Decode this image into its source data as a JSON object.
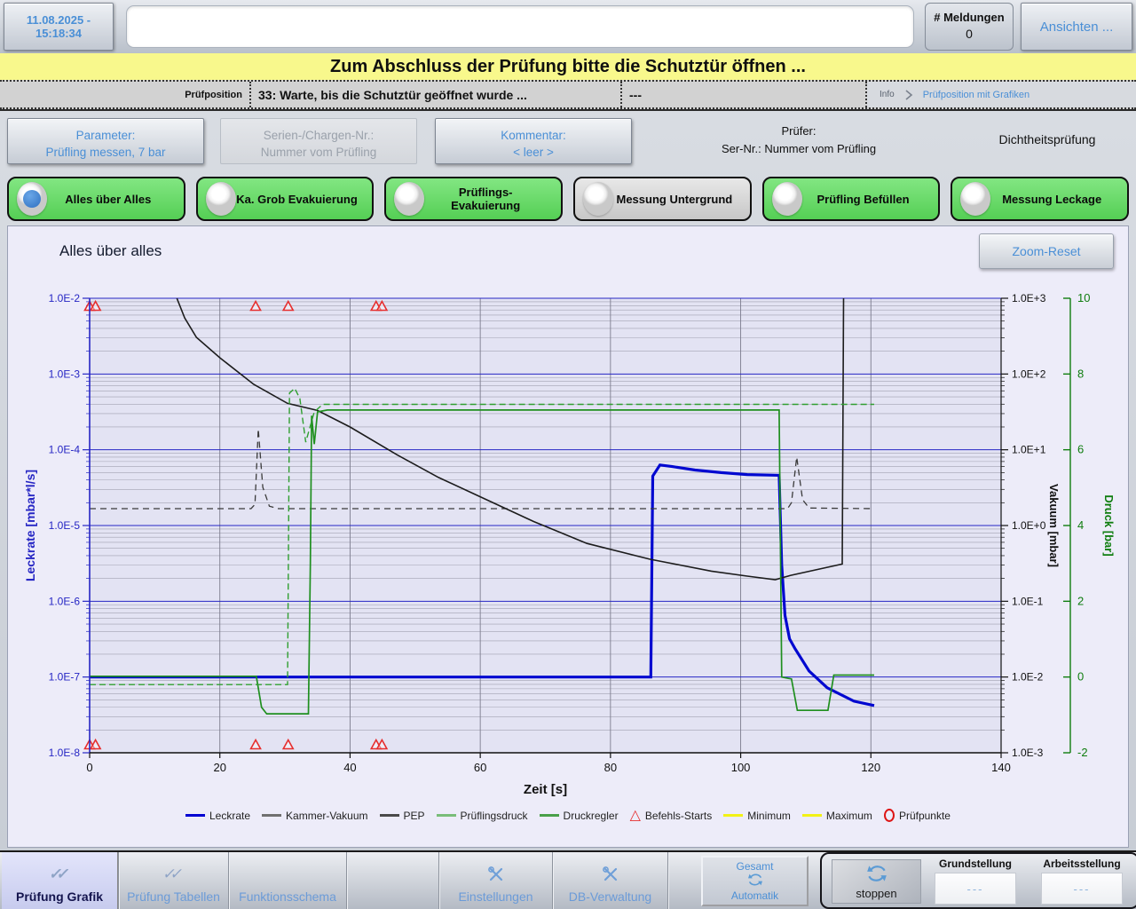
{
  "header": {
    "datetime": "11.08.2025 - 15:18:34",
    "message_text": "",
    "meldungen_label": "# Meldungen",
    "meldungen_count": "0",
    "ansichten_label": "Ansichten ..."
  },
  "banner": {
    "text": "Zum Abschluss der Prüfung bitte die Schutztür öffnen ..."
  },
  "statusbar": {
    "pruefposition_label": "Prüfposition",
    "status_text": "33: Warte, bis die Schutztür geöffnet wurde ...",
    "extra_text": "---",
    "info_label": "Info",
    "view_label": "Prüfposition mit Grafiken"
  },
  "info_row": {
    "parameter_title": "Parameter:",
    "parameter_value": "Prüfling messen, 7 bar",
    "serien_title": "Serien-/Chargen-Nr.:",
    "serien_value": "Nummer vom Prüfling",
    "kommentar_title": "Kommentar:",
    "kommentar_value": "< leer >",
    "pruefer_title": "Prüfer:",
    "pruefer_value": "Ser-Nr.: Nummer vom Prüfling",
    "mode_label": "Dichtheitsprüfung"
  },
  "process_steps": [
    {
      "label": "Alles über Alles",
      "color": "green",
      "selected": true
    },
    {
      "label": "Ka. Grob Evakuierung",
      "color": "green",
      "selected": false
    },
    {
      "label": "Prüflings-Evakuierung",
      "color": "green",
      "selected": false
    },
    {
      "label": "Messung Untergrund",
      "color": "gray",
      "selected": false
    },
    {
      "label": "Prüfling Befüllen",
      "color": "green",
      "selected": false
    },
    {
      "label": "Messung Leckage",
      "color": "green",
      "selected": false
    }
  ],
  "chart": {
    "title": "Alles über alles",
    "zoom_reset_label": "Zoom-Reset"
  },
  "chart_data": {
    "type": "line",
    "title": "Alles über alles",
    "x_axis": {
      "label": "Zeit [s]",
      "range": [
        0,
        140
      ],
      "ticks": [
        0,
        20,
        40,
        60,
        80,
        100,
        120,
        140
      ]
    },
    "axes": [
      {
        "id": "leckrate",
        "label": "Leckrate [mbar*l/s]",
        "side": "left",
        "scale": "log",
        "range": [
          1e-08,
          0.01
        ],
        "color": "#2626c4",
        "tick_values": [
          0.01,
          0.001,
          0.0001,
          1e-05,
          1e-06,
          1e-07,
          1e-08
        ],
        "tick_labels": [
          "1.0E-2",
          "1.0E-3",
          "1.0E-4",
          "1.0E-5",
          "1.0E-6",
          "1.0E-7",
          "1.0E-8"
        ]
      },
      {
        "id": "vakuum",
        "label": "Vakuum [mbar]",
        "side": "right",
        "scale": "log",
        "range": [
          0.001,
          1000.0
        ],
        "color": "#111111",
        "tick_values": [
          1000.0,
          100.0,
          10.0,
          1.0,
          0.1,
          0.01,
          0.001
        ],
        "tick_labels": [
          "1.0E+3",
          "1.0E+2",
          "1.0E+1",
          "1.0E+0",
          "1.0E-1",
          "1.0E-2",
          "1.0E-3"
        ]
      },
      {
        "id": "druck",
        "label": "Druck [bar]",
        "side": "right2",
        "scale": "linear",
        "range": [
          -2,
          10
        ],
        "color": "#0f7d0f",
        "tick_values": [
          10,
          8,
          6,
          4,
          2,
          0,
          -2
        ],
        "tick_labels": [
          "10",
          "8",
          "6",
          "4",
          "2",
          "0",
          "-2"
        ]
      }
    ],
    "series": [
      {
        "name": "Leckrate",
        "axis": "leckrate",
        "color": "#0008d0",
        "width": 3.2,
        "dash": null,
        "points": [
          [
            0,
            1e-07
          ],
          [
            86.2,
            1e-07
          ],
          [
            86.5,
            4.5e-05
          ],
          [
            87.6,
            6.3e-05
          ],
          [
            89.5,
            6e-05
          ],
          [
            93,
            5.4e-05
          ],
          [
            97,
            5e-05
          ],
          [
            101,
            4.7e-05
          ],
          [
            105.9,
            4.6e-05
          ],
          [
            106.3,
            3e-06
          ],
          [
            106.8,
            6.5e-07
          ],
          [
            107.5,
            3.2e-07
          ],
          [
            108.3,
            2.4e-07
          ],
          [
            110.5,
            1.2e-07
          ],
          [
            113.3,
            7.2e-08
          ],
          [
            117.4,
            4.8e-08
          ],
          [
            120.5,
            4.2e-08
          ]
        ]
      },
      {
        "name": "Kammer-Vakuum",
        "axis": "vakuum",
        "color": "#3a3a3a",
        "width": 1.3,
        "dash": "7 5",
        "points": [
          [
            0,
            1.67
          ],
          [
            24.8,
            1.67
          ],
          [
            25.4,
            1.9
          ],
          [
            25.9,
            18.9
          ],
          [
            26.6,
            3.2
          ],
          [
            27.6,
            1.8
          ],
          [
            29,
            1.67
          ],
          [
            107.2,
            1.67
          ],
          [
            107.8,
            2.0
          ],
          [
            108.6,
            8.0
          ],
          [
            109.5,
            2.2
          ],
          [
            110.5,
            1.7
          ],
          [
            120.5,
            1.67
          ]
        ]
      },
      {
        "name": "PEP",
        "axis": "vakuum",
        "color": "#1c1c1c",
        "width": 1.6,
        "dash": null,
        "points": [
          [
            13.4,
            1000
          ],
          [
            14.6,
            550
          ],
          [
            16.4,
            305
          ],
          [
            20,
            164
          ],
          [
            25.2,
            73
          ],
          [
            30.4,
            41
          ],
          [
            35,
            33
          ],
          [
            40,
            20
          ],
          [
            47.3,
            8.5
          ],
          [
            53.6,
            4.3
          ],
          [
            60,
            2.4
          ],
          [
            68.2,
            1.13
          ],
          [
            76.4,
            0.58
          ],
          [
            86,
            0.36
          ],
          [
            95.5,
            0.25
          ],
          [
            101,
            0.215
          ],
          [
            105.3,
            0.193
          ],
          [
            107.7,
            0.22
          ],
          [
            115.6,
            0.31
          ],
          [
            115.8,
            1000
          ]
        ]
      },
      {
        "name": "Prüflingsdruck",
        "axis": "druck",
        "color": "#1f8f1f",
        "width": 1.7,
        "dash": null,
        "points": [
          [
            0,
            0.02
          ],
          [
            25.6,
            0.02
          ],
          [
            26.4,
            -0.8
          ],
          [
            27.2,
            -0.97
          ],
          [
            33.6,
            -0.97
          ],
          [
            33.9,
            3.0
          ],
          [
            34.1,
            6.9
          ],
          [
            34.5,
            6.15
          ],
          [
            35,
            7.0
          ],
          [
            36.5,
            7.05
          ],
          [
            105.9,
            7.05
          ],
          [
            106.3,
            0.0
          ],
          [
            107.8,
            -0.05
          ],
          [
            108.7,
            -0.88
          ],
          [
            113.4,
            -0.88
          ],
          [
            114.3,
            0.05
          ],
          [
            120.5,
            0.05
          ]
        ]
      },
      {
        "name": "Druckregler",
        "axis": "druck",
        "color": "#2f9f2f",
        "width": 1.4,
        "dash": "7 4",
        "points": [
          [
            0,
            -0.2
          ],
          [
            30.4,
            -0.2
          ],
          [
            30.7,
            7.5
          ],
          [
            31.5,
            7.62
          ],
          [
            32.3,
            7.35
          ],
          [
            33.2,
            6.2
          ],
          [
            34.5,
            7.0
          ],
          [
            35.8,
            7.2
          ],
          [
            120.5,
            7.2
          ]
        ]
      }
    ],
    "markers": {
      "name": "Befehls-Starts",
      "times": [
        0,
        0.9,
        25.5,
        30.5,
        44,
        44.9
      ],
      "color": "#e62e2e"
    },
    "legend": [
      {
        "label": "Leckrate",
        "swatch": "line",
        "color": "#0000d2"
      },
      {
        "label": "Kammer-Vakuum",
        "swatch": "line",
        "color": "#707070"
      },
      {
        "label": "PEP",
        "swatch": "line",
        "color": "#4a4a4a"
      },
      {
        "label": "Prüflingsdruck",
        "swatch": "line",
        "color": "#79bd79"
      },
      {
        "label": "Druckregler",
        "swatch": "line",
        "color": "#49a049"
      },
      {
        "label": "Befehls-Starts",
        "swatch": "triangle",
        "color": "#e62e2e"
      },
      {
        "label": "Minimum",
        "swatch": "line",
        "color": "#f2f215"
      },
      {
        "label": "Maximum",
        "swatch": "line",
        "color": "#f2f215"
      },
      {
        "label": "Prüfpunkte",
        "swatch": "circle",
        "color": "#dd1515"
      }
    ],
    "grid": {
      "major_color": "#2626c4",
      "minor_color": "#a2a2b2",
      "vertical_color": "#7c7c8e",
      "plot_bg": "#e3e3f3"
    }
  },
  "toolbar": {
    "tabs": [
      {
        "label": "Prüfung Grafik",
        "icon": "double-check",
        "active": true
      },
      {
        "label": "Prüfung Tabellen",
        "icon": "double-check",
        "active": false
      },
      {
        "label": "Funktionsschema",
        "icon": null,
        "active": false
      },
      {
        "label": "Einstellungen",
        "icon": "tools",
        "active": false
      },
      {
        "label": "DB-Verwaltung",
        "icon": "tools",
        "active": false
      }
    ],
    "gesamt": {
      "top": "Gesamt",
      "bottom": "Automatik"
    },
    "controls": {
      "stop_label": "stoppen",
      "grundstellung_label": "Grundstellung",
      "grundstellung_value": "---",
      "arbeitsstellung_label": "Arbeitsstellung",
      "arbeitsstellung_value": "---"
    }
  }
}
